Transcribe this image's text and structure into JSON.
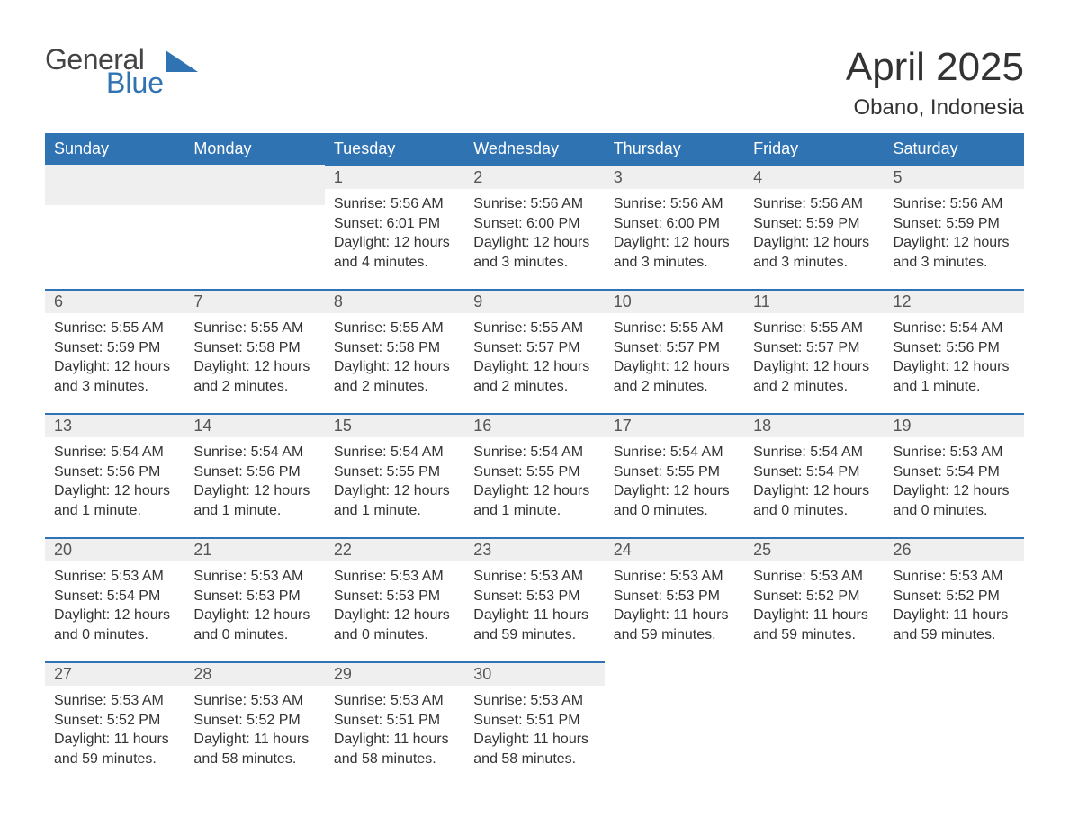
{
  "logo": {
    "line1": "General",
    "line2": "Blue"
  },
  "title": "April 2025",
  "location": "Obano, Indonesia",
  "colors": {
    "brand": "#2f73b3",
    "header_text": "#ffffff",
    "daybar_bg": "#efefef",
    "text": "#333333",
    "page_bg": "#ffffff"
  },
  "weekdays": [
    "Sunday",
    "Monday",
    "Tuesday",
    "Wednesday",
    "Thursday",
    "Friday",
    "Saturday"
  ],
  "weeks": [
    [
      {
        "empty": true
      },
      {
        "empty": true
      },
      {
        "day": "1",
        "sunrise": "Sunrise: 5:56 AM",
        "sunset": "Sunset: 6:01 PM",
        "daylight1": "Daylight: 12 hours",
        "daylight2": "and 4 minutes."
      },
      {
        "day": "2",
        "sunrise": "Sunrise: 5:56 AM",
        "sunset": "Sunset: 6:00 PM",
        "daylight1": "Daylight: 12 hours",
        "daylight2": "and 3 minutes."
      },
      {
        "day": "3",
        "sunrise": "Sunrise: 5:56 AM",
        "sunset": "Sunset: 6:00 PM",
        "daylight1": "Daylight: 12 hours",
        "daylight2": "and 3 minutes."
      },
      {
        "day": "4",
        "sunrise": "Sunrise: 5:56 AM",
        "sunset": "Sunset: 5:59 PM",
        "daylight1": "Daylight: 12 hours",
        "daylight2": "and 3 minutes."
      },
      {
        "day": "5",
        "sunrise": "Sunrise: 5:56 AM",
        "sunset": "Sunset: 5:59 PM",
        "daylight1": "Daylight: 12 hours",
        "daylight2": "and 3 minutes."
      }
    ],
    [
      {
        "day": "6",
        "sunrise": "Sunrise: 5:55 AM",
        "sunset": "Sunset: 5:59 PM",
        "daylight1": "Daylight: 12 hours",
        "daylight2": "and 3 minutes."
      },
      {
        "day": "7",
        "sunrise": "Sunrise: 5:55 AM",
        "sunset": "Sunset: 5:58 PM",
        "daylight1": "Daylight: 12 hours",
        "daylight2": "and 2 minutes."
      },
      {
        "day": "8",
        "sunrise": "Sunrise: 5:55 AM",
        "sunset": "Sunset: 5:58 PM",
        "daylight1": "Daylight: 12 hours",
        "daylight2": "and 2 minutes."
      },
      {
        "day": "9",
        "sunrise": "Sunrise: 5:55 AM",
        "sunset": "Sunset: 5:57 PM",
        "daylight1": "Daylight: 12 hours",
        "daylight2": "and 2 minutes."
      },
      {
        "day": "10",
        "sunrise": "Sunrise: 5:55 AM",
        "sunset": "Sunset: 5:57 PM",
        "daylight1": "Daylight: 12 hours",
        "daylight2": "and 2 minutes."
      },
      {
        "day": "11",
        "sunrise": "Sunrise: 5:55 AM",
        "sunset": "Sunset: 5:57 PM",
        "daylight1": "Daylight: 12 hours",
        "daylight2": "and 2 minutes."
      },
      {
        "day": "12",
        "sunrise": "Sunrise: 5:54 AM",
        "sunset": "Sunset: 5:56 PM",
        "daylight1": "Daylight: 12 hours",
        "daylight2": "and 1 minute."
      }
    ],
    [
      {
        "day": "13",
        "sunrise": "Sunrise: 5:54 AM",
        "sunset": "Sunset: 5:56 PM",
        "daylight1": "Daylight: 12 hours",
        "daylight2": "and 1 minute."
      },
      {
        "day": "14",
        "sunrise": "Sunrise: 5:54 AM",
        "sunset": "Sunset: 5:56 PM",
        "daylight1": "Daylight: 12 hours",
        "daylight2": "and 1 minute."
      },
      {
        "day": "15",
        "sunrise": "Sunrise: 5:54 AM",
        "sunset": "Sunset: 5:55 PM",
        "daylight1": "Daylight: 12 hours",
        "daylight2": "and 1 minute."
      },
      {
        "day": "16",
        "sunrise": "Sunrise: 5:54 AM",
        "sunset": "Sunset: 5:55 PM",
        "daylight1": "Daylight: 12 hours",
        "daylight2": "and 1 minute."
      },
      {
        "day": "17",
        "sunrise": "Sunrise: 5:54 AM",
        "sunset": "Sunset: 5:55 PM",
        "daylight1": "Daylight: 12 hours",
        "daylight2": "and 0 minutes."
      },
      {
        "day": "18",
        "sunrise": "Sunrise: 5:54 AM",
        "sunset": "Sunset: 5:54 PM",
        "daylight1": "Daylight: 12 hours",
        "daylight2": "and 0 minutes."
      },
      {
        "day": "19",
        "sunrise": "Sunrise: 5:53 AM",
        "sunset": "Sunset: 5:54 PM",
        "daylight1": "Daylight: 12 hours",
        "daylight2": "and 0 minutes."
      }
    ],
    [
      {
        "day": "20",
        "sunrise": "Sunrise: 5:53 AM",
        "sunset": "Sunset: 5:54 PM",
        "daylight1": "Daylight: 12 hours",
        "daylight2": "and 0 minutes."
      },
      {
        "day": "21",
        "sunrise": "Sunrise: 5:53 AM",
        "sunset": "Sunset: 5:53 PM",
        "daylight1": "Daylight: 12 hours",
        "daylight2": "and 0 minutes."
      },
      {
        "day": "22",
        "sunrise": "Sunrise: 5:53 AM",
        "sunset": "Sunset: 5:53 PM",
        "daylight1": "Daylight: 12 hours",
        "daylight2": "and 0 minutes."
      },
      {
        "day": "23",
        "sunrise": "Sunrise: 5:53 AM",
        "sunset": "Sunset: 5:53 PM",
        "daylight1": "Daylight: 11 hours",
        "daylight2": "and 59 minutes."
      },
      {
        "day": "24",
        "sunrise": "Sunrise: 5:53 AM",
        "sunset": "Sunset: 5:53 PM",
        "daylight1": "Daylight: 11 hours",
        "daylight2": "and 59 minutes."
      },
      {
        "day": "25",
        "sunrise": "Sunrise: 5:53 AM",
        "sunset": "Sunset: 5:52 PM",
        "daylight1": "Daylight: 11 hours",
        "daylight2": "and 59 minutes."
      },
      {
        "day": "26",
        "sunrise": "Sunrise: 5:53 AM",
        "sunset": "Sunset: 5:52 PM",
        "daylight1": "Daylight: 11 hours",
        "daylight2": "and 59 minutes."
      }
    ],
    [
      {
        "day": "27",
        "sunrise": "Sunrise: 5:53 AM",
        "sunset": "Sunset: 5:52 PM",
        "daylight1": "Daylight: 11 hours",
        "daylight2": "and 59 minutes."
      },
      {
        "day": "28",
        "sunrise": "Sunrise: 5:53 AM",
        "sunset": "Sunset: 5:52 PM",
        "daylight1": "Daylight: 11 hours",
        "daylight2": "and 58 minutes."
      },
      {
        "day": "29",
        "sunrise": "Sunrise: 5:53 AM",
        "sunset": "Sunset: 5:51 PM",
        "daylight1": "Daylight: 11 hours",
        "daylight2": "and 58 minutes."
      },
      {
        "day": "30",
        "sunrise": "Sunrise: 5:53 AM",
        "sunset": "Sunset: 5:51 PM",
        "daylight1": "Daylight: 11 hours",
        "daylight2": "and 58 minutes."
      },
      {
        "empty": true,
        "blank": true
      },
      {
        "empty": true,
        "blank": true
      },
      {
        "empty": true,
        "blank": true
      }
    ]
  ]
}
